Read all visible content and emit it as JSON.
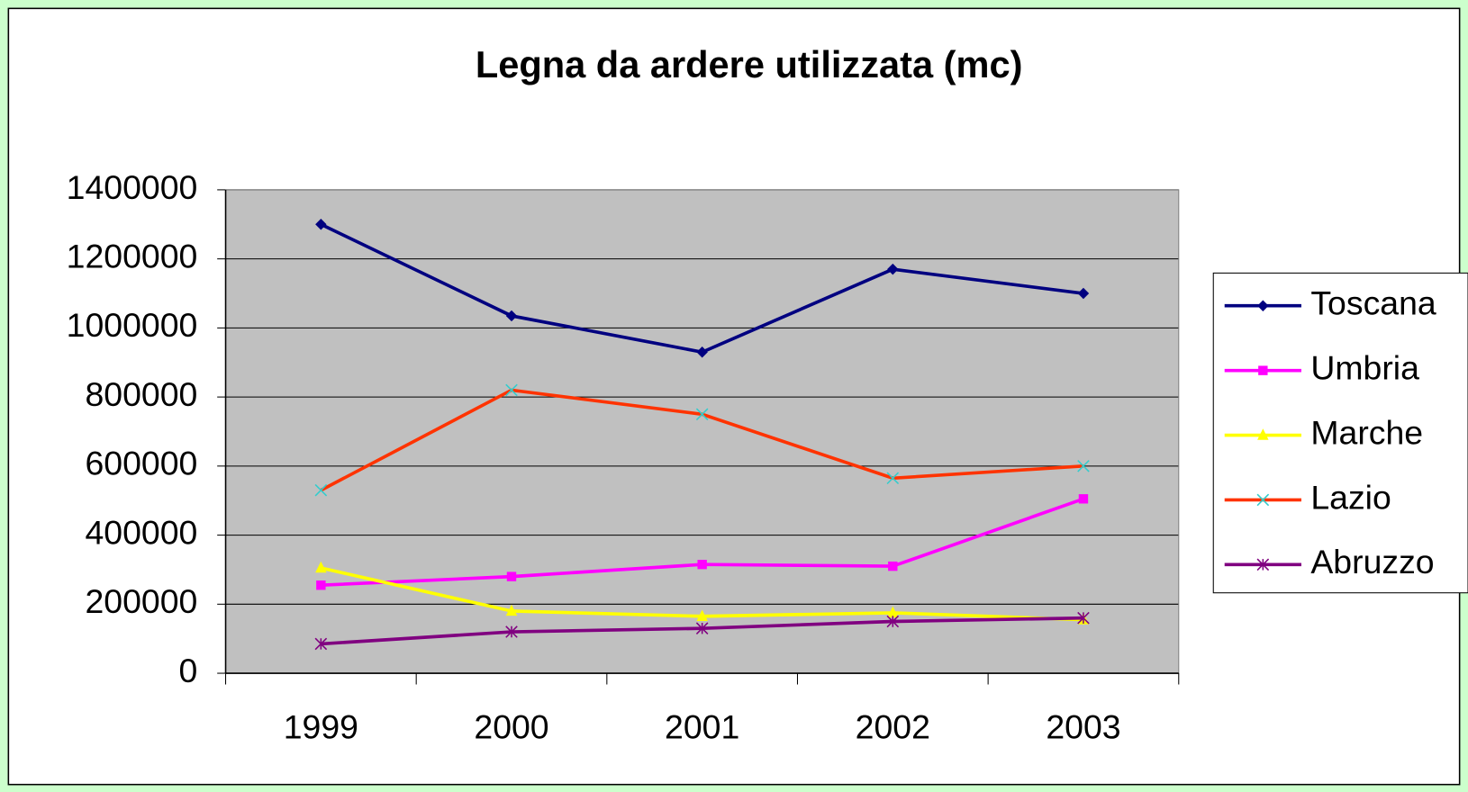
{
  "chart_data": {
    "type": "line",
    "title": "Legna da ardere utilizzata (mc)",
    "categories": [
      "1999",
      "2000",
      "2001",
      "2002",
      "2003"
    ],
    "series": [
      {
        "name": "Toscana",
        "color": "#000080",
        "marker": "diamond",
        "marker_color": "#000080",
        "values": [
          1300000,
          1035000,
          930000,
          1170000,
          1100000
        ]
      },
      {
        "name": "Umbria",
        "color": "#ff00ff",
        "marker": "square",
        "marker_color": "#ff00ff",
        "values": [
          255000,
          280000,
          315000,
          310000,
          505000
        ]
      },
      {
        "name": "Marche",
        "color": "#ffff00",
        "marker": "triangle",
        "marker_color": "#ffff00",
        "values": [
          305000,
          180000,
          165000,
          175000,
          155000
        ]
      },
      {
        "name": "Lazio",
        "color": "#ff3300",
        "marker": "x",
        "marker_color": "#33cccc",
        "values": [
          530000,
          820000,
          750000,
          565000,
          600000
        ]
      },
      {
        "name": "Abruzzo",
        "color": "#800080",
        "marker": "asterisk",
        "marker_color": "#800080",
        "values": [
          85000,
          120000,
          130000,
          150000,
          160000
        ]
      }
    ],
    "ylim": [
      0,
      1400000
    ],
    "yticks": [
      0,
      200000,
      400000,
      600000,
      800000,
      1000000,
      1200000,
      1400000
    ],
    "grid": true,
    "legend": "right",
    "plot_background": "#c0c0c0"
  }
}
